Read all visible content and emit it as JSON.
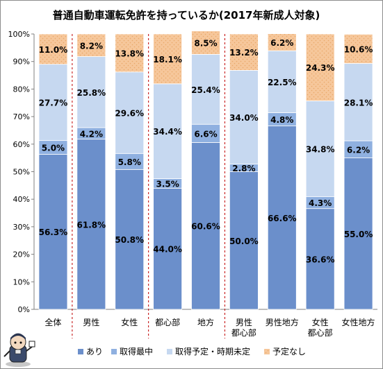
{
  "chart_data": {
    "type": "bar",
    "stacked": true,
    "title": "普通自動車運転免許を持っているか(2017年新成人対象)",
    "categories": [
      [
        "全体"
      ],
      [
        "男性"
      ],
      [
        "女性"
      ],
      [
        "都心部"
      ],
      [
        "地方"
      ],
      [
        "男性",
        "都心部"
      ],
      [
        "男性地方"
      ],
      [
        "女性",
        "都心部"
      ],
      [
        "女性地方"
      ]
    ],
    "series": [
      {
        "name": "あり",
        "color": "#6b8fcb",
        "values": [
          56.3,
          61.8,
          50.8,
          44.0,
          60.6,
          50.0,
          66.6,
          36.6,
          55.0
        ]
      },
      {
        "name": "取得最中",
        "color": "#8fb0e0",
        "values": [
          5.0,
          4.2,
          5.8,
          3.5,
          6.6,
          2.8,
          4.8,
          4.3,
          6.2
        ]
      },
      {
        "name": "取得予定・時期未定",
        "color": "#c6d8f0",
        "values": [
          27.7,
          25.8,
          29.6,
          34.4,
          25.4,
          34.0,
          22.5,
          34.8,
          28.1
        ]
      },
      {
        "name": "予定なし",
        "color": "#f6c79b",
        "values": [
          11.0,
          8.2,
          13.8,
          18.1,
          8.5,
          13.2,
          6.2,
          24.3,
          10.6
        ]
      }
    ],
    "y_ticks": [
      "0%",
      "10%",
      "20%",
      "30%",
      "40%",
      "50%",
      "60%",
      "70%",
      "80%",
      "90%",
      "100%"
    ],
    "ylim": [
      0,
      100
    ],
    "separators_after_category": [
      0,
      2,
      4
    ],
    "grid": false,
    "legend_position": "bottom"
  }
}
